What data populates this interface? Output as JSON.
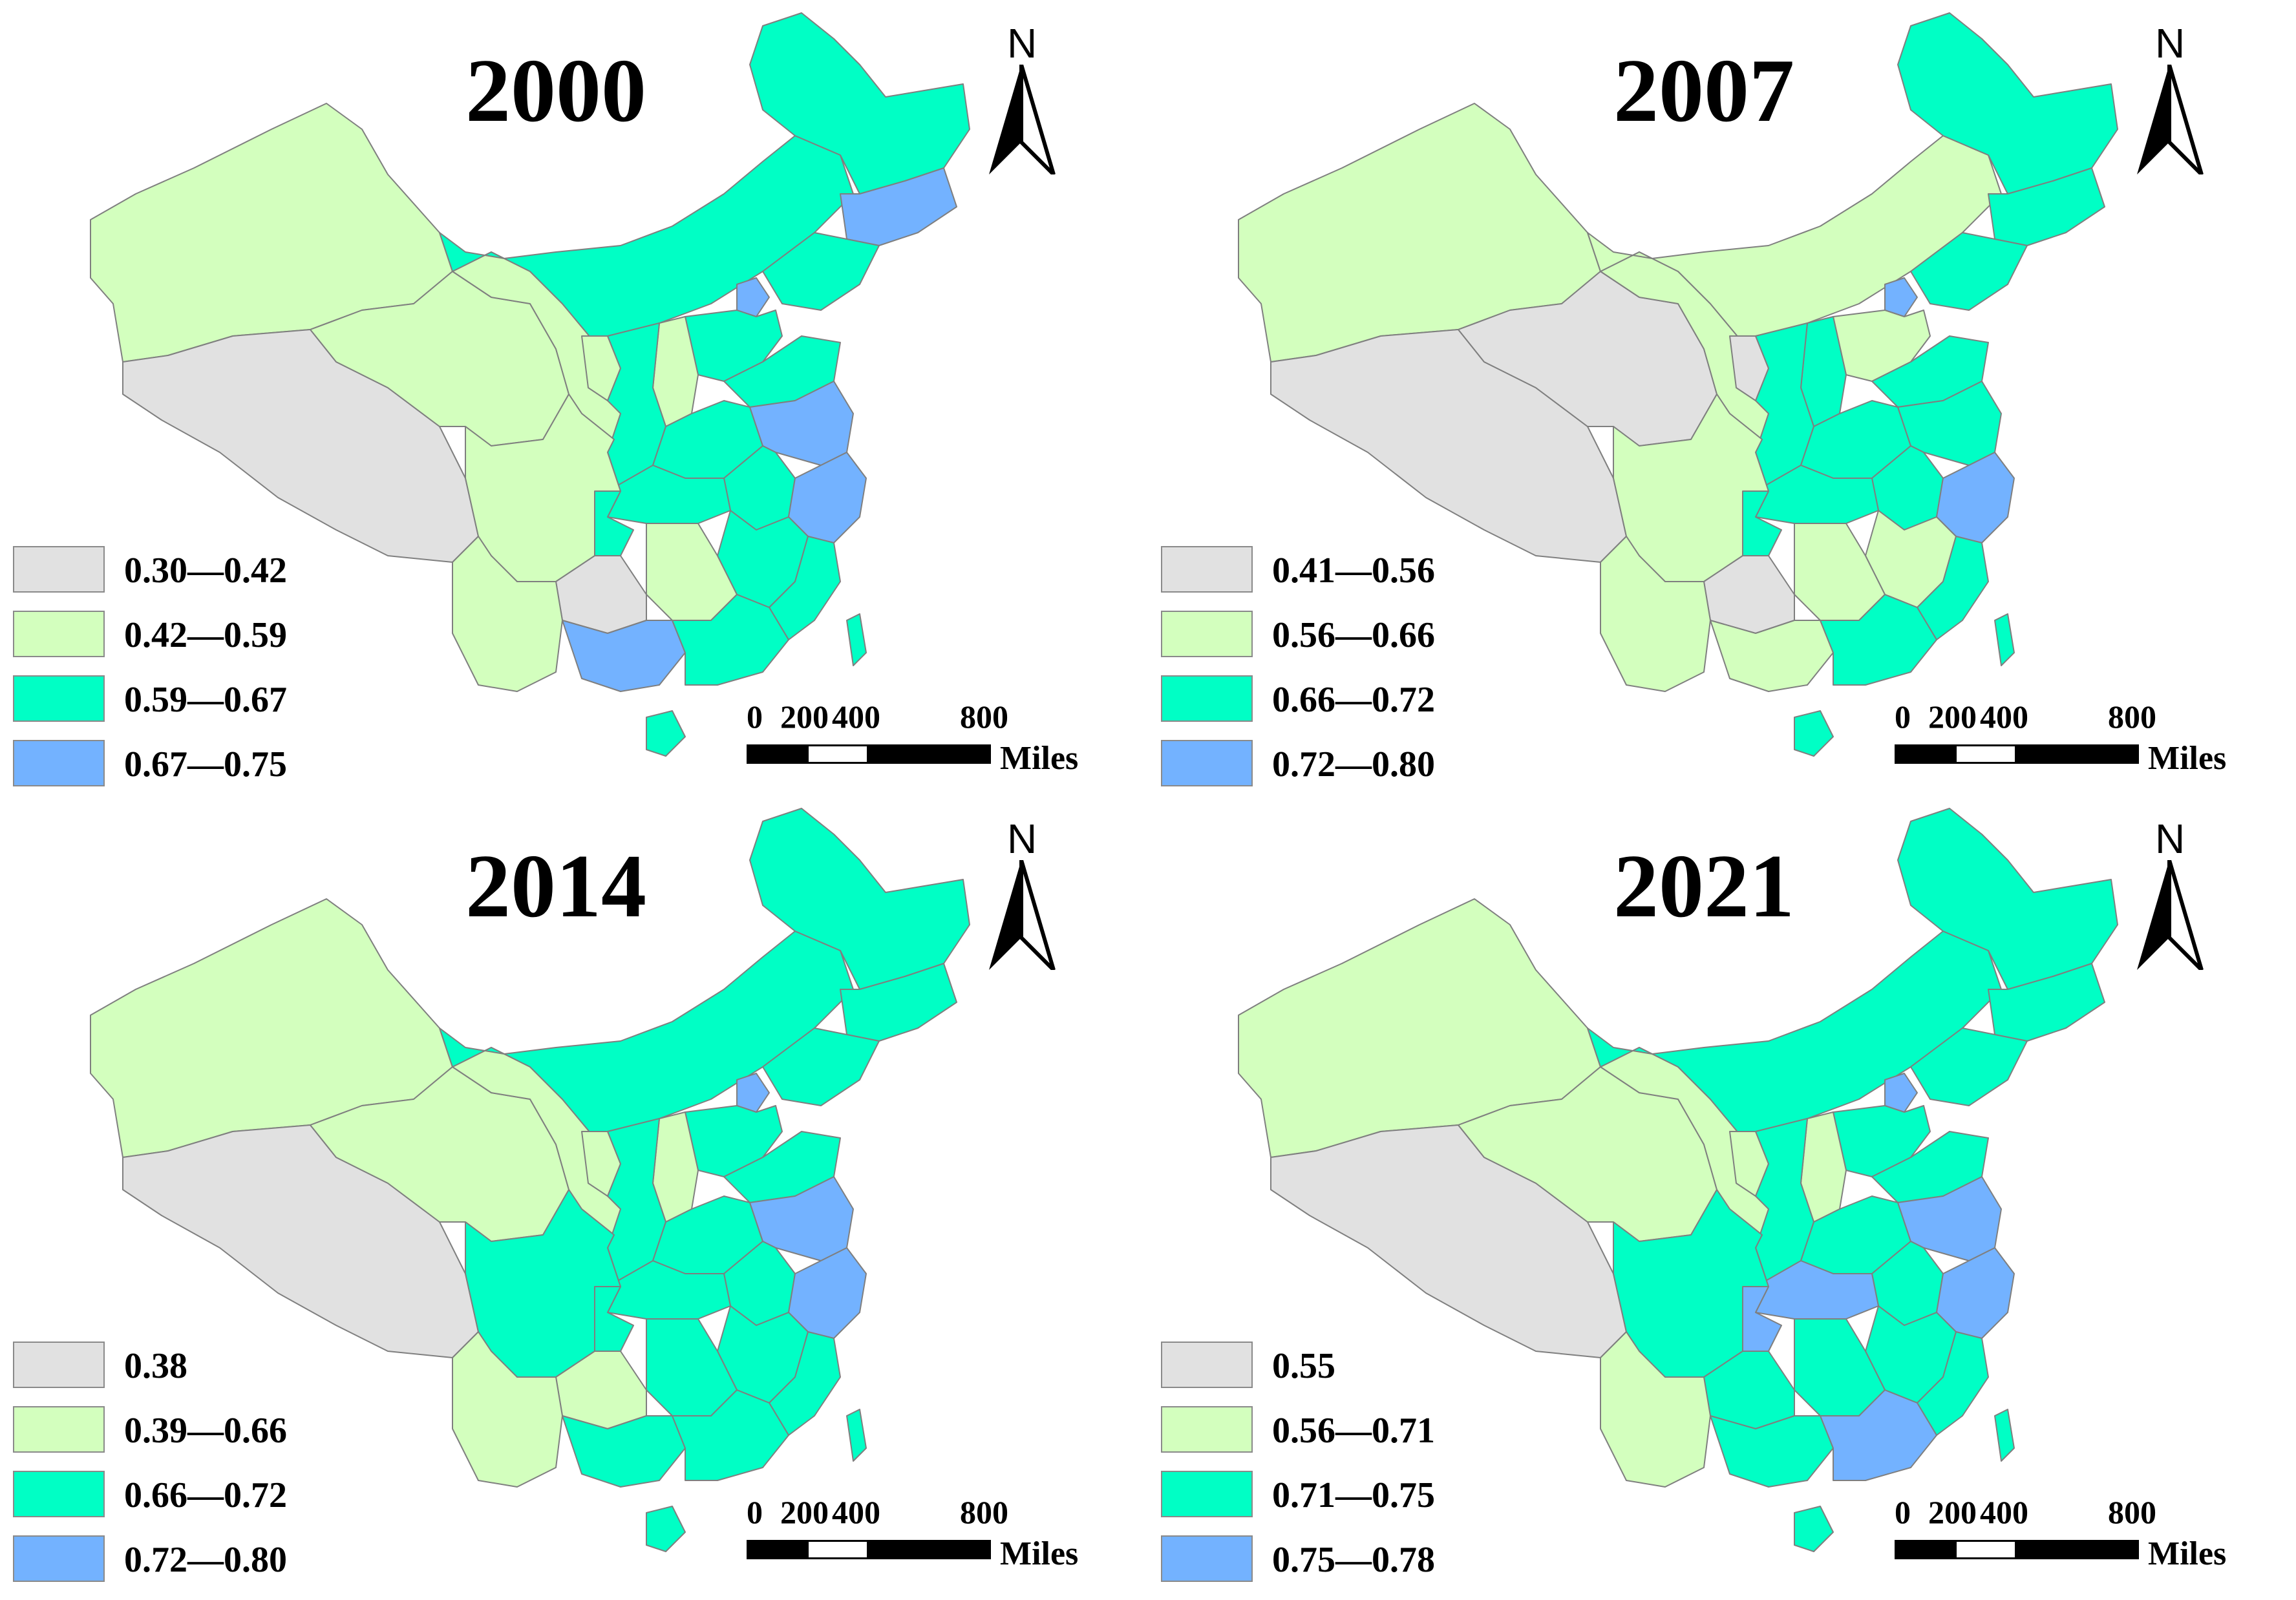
{
  "panels": [
    {
      "year": "2000",
      "legend": [
        {
          "label": "0.30—0.42",
          "color": "#e1e1e1"
        },
        {
          "label": "0.42—0.59",
          "color": "#d3ffbe"
        },
        {
          "label": "0.59—0.67",
          "color": "#00ffc5"
        },
        {
          "label": "0.67—0.75",
          "color": "#73b2ff"
        }
      ]
    },
    {
      "year": "2007",
      "legend": [
        {
          "label": "0.41—0.56",
          "color": "#e1e1e1"
        },
        {
          "label": "0.56—0.66",
          "color": "#d3ffbe"
        },
        {
          "label": "0.66—0.72",
          "color": "#00ffc5"
        },
        {
          "label": "0.72—0.80",
          "color": "#73b2ff"
        }
      ]
    },
    {
      "year": "2014",
      "legend": [
        {
          "label": "0.38",
          "color": "#e1e1e1"
        },
        {
          "label": "0.39—0.66",
          "color": "#d3ffbe"
        },
        {
          "label": "0.66—0.72",
          "color": "#00ffc5"
        },
        {
          "label": "0.72—0.80",
          "color": "#73b2ff"
        }
      ]
    },
    {
      "year": "2021",
      "legend": [
        {
          "label": "0.55",
          "color": "#e1e1e1"
        },
        {
          "label": "0.56—0.71",
          "color": "#d3ffbe"
        },
        {
          "label": "0.71—0.75",
          "color": "#00ffc5"
        },
        {
          "label": "0.75—0.78",
          "color": "#73b2ff"
        }
      ]
    }
  ],
  "north_label": "N",
  "scale": {
    "ticks": [
      "0",
      "200",
      "400",
      "800"
    ],
    "unit": "Miles"
  },
  "colors": {
    "class1": "#e1e1e1",
    "class2": "#d3ffbe",
    "class3": "#00ffc5",
    "class4": "#73b2ff",
    "border": "#7f7f7f"
  }
}
